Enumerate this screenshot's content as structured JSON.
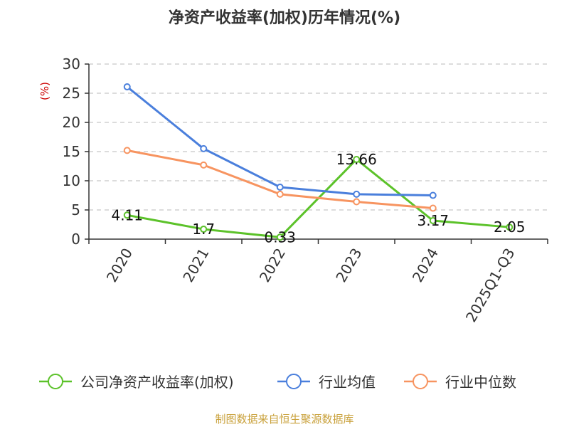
{
  "chart_data": {
    "type": "line",
    "title": "净资产收益率(加权)历年情况(%)",
    "ylabel": "(%)",
    "xlabel": "",
    "categories": [
      "2020",
      "2021",
      "2022",
      "2023",
      "2024",
      "2025Q1-Q3"
    ],
    "ylim": [
      0,
      30
    ],
    "yticks": [
      0,
      5,
      10,
      15,
      20,
      25,
      30
    ],
    "grid": "horizontal-dashed",
    "legend_position": "bottom",
    "series": [
      {
        "name": "公司净资产收益率(加权)",
        "color": "#5cc22a",
        "values": [
          4.11,
          1.7,
          0.33,
          13.66,
          3.17,
          2.05
        ],
        "labels": [
          "4.11",
          "1.7",
          "0.33",
          "13.66",
          "3.17",
          "2.05"
        ]
      },
      {
        "name": "行业均值",
        "color": "#4a7fdc",
        "values": [
          26.1,
          15.5,
          8.9,
          7.7,
          7.5,
          null
        ]
      },
      {
        "name": "行业中位数",
        "color": "#f79460",
        "values": [
          15.2,
          12.7,
          7.7,
          6.4,
          5.3,
          null
        ]
      }
    ]
  },
  "source": "制图数据来自恒生聚源数据库"
}
